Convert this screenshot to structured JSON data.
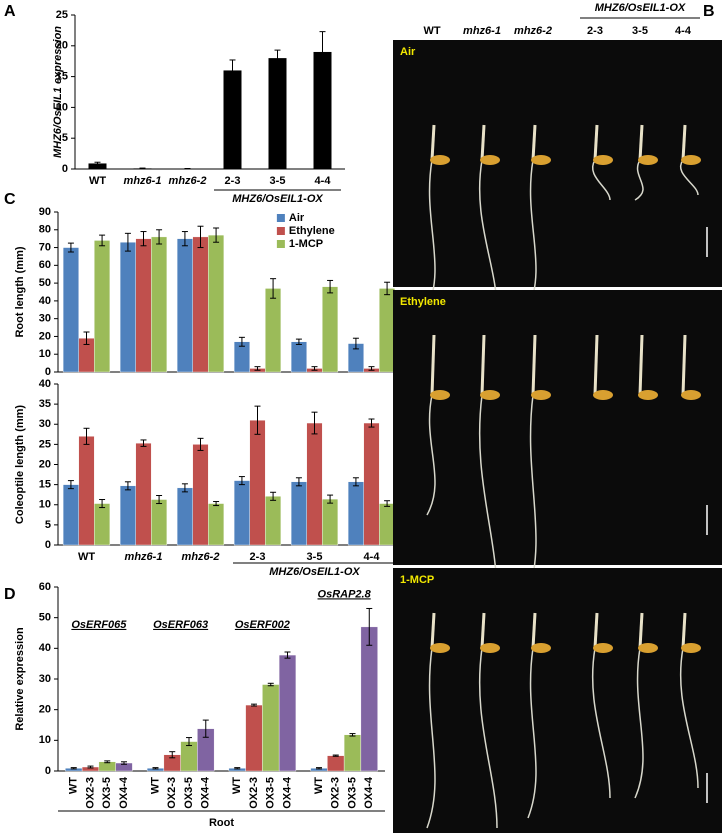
{
  "panel_labels": [
    "A",
    "B",
    "C",
    "D"
  ],
  "chart_data": [
    {
      "type": "bar",
      "y_label": "MHZ6/OsEIL1 expression",
      "categories": [
        "WT",
        "mhz6-1",
        "mhz6-2",
        "2-3",
        "3-5",
        "4-4"
      ],
      "group_label": "MHZ6/OsEIL1-OX",
      "values": [
        0.9,
        0.1,
        0.05,
        16,
        18,
        19
      ],
      "errors": [
        0.2,
        0.05,
        0.03,
        1.7,
        1.3,
        3.3
      ],
      "color": "#000000",
      "ylim": [
        0,
        25
      ],
      "yticks": [
        0,
        5,
        10,
        15,
        20,
        25
      ]
    },
    {
      "type": "bar",
      "y_label": "Root length (mm)",
      "legend": "upper right",
      "series": [
        {
          "name": "Air",
          "color": "#4f81bd",
          "values": [
            70,
            73,
            75,
            17,
            17,
            16
          ],
          "errors": [
            2.5,
            5,
            4,
            2.5,
            1.5,
            3
          ]
        },
        {
          "name": "Ethylene",
          "color": "#c0504d",
          "values": [
            19,
            75,
            76,
            2,
            2,
            2
          ],
          "errors": [
            3.5,
            4,
            6,
            1,
            1,
            1
          ]
        },
        {
          "name": "1-MCP",
          "color": "#9bbb59",
          "values": [
            74,
            76,
            77,
            47,
            48,
            47
          ],
          "errors": [
            3,
            4,
            4,
            5.5,
            3.5,
            3.5
          ]
        }
      ],
      "ylim": [
        0,
        90
      ],
      "yticks": [
        0,
        10,
        20,
        30,
        40,
        50,
        60,
        70,
        80,
        90
      ]
    },
    {
      "type": "bar",
      "y_label": "Coleoptile length (mm)",
      "categories": [
        "WT",
        "mhz6-1",
        "mhz6-2",
        "2-3",
        "3-5",
        "4-4"
      ],
      "group_label": "MHZ6/OsEIL1-OX",
      "series": [
        {
          "color": "#4f81bd",
          "values": [
            15,
            14.7,
            14.2,
            16,
            15.7,
            15.7
          ],
          "errors": [
            1,
            1,
            1,
            1,
            1,
            1
          ]
        },
        {
          "color": "#c0504d",
          "values": [
            27,
            25.3,
            25,
            31,
            30.3,
            30.3
          ],
          "errors": [
            2,
            0.8,
            1.5,
            3.5,
            2.7,
            1
          ]
        },
        {
          "color": "#9bbb59",
          "values": [
            10.3,
            11.3,
            10.3,
            12.1,
            11.4,
            10.3
          ],
          "errors": [
            1,
            1,
            0.5,
            1,
            1,
            0.7
          ]
        }
      ],
      "ylim": [
        0,
        40
      ],
      "yticks": [
        0,
        5,
        10,
        15,
        20,
        25,
        30,
        35,
        40
      ]
    },
    {
      "type": "bar",
      "y_label": "Relative expression",
      "x_label": "Root",
      "categories": [
        "OsERF065",
        "OsERF063",
        "OsERF002",
        "OsRAP2.8"
      ],
      "series": [
        {
          "name": "WT",
          "color": "#4f81bd",
          "values": [
            0.9,
            0.9,
            0.9,
            0.9
          ],
          "errors": [
            0.2,
            0.2,
            0.2,
            0.2
          ]
        },
        {
          "name": "OX2-3",
          "color": "#c0504d",
          "values": [
            1.3,
            5.3,
            21.5,
            5
          ],
          "errors": [
            0.3,
            1,
            0.3,
            0.2
          ]
        },
        {
          "name": "OX3-5",
          "color": "#9bbb59",
          "values": [
            3,
            9.6,
            28.2,
            11.8
          ],
          "errors": [
            0.3,
            1.3,
            0.4,
            0.4
          ]
        },
        {
          "name": "OX4-4",
          "color": "#8064a2",
          "values": [
            2.6,
            13.8,
            37.8,
            47
          ],
          "errors": [
            0.4,
            2.8,
            1,
            6
          ]
        }
      ],
      "ylim": [
        0,
        60
      ],
      "yticks": [
        0,
        10,
        20,
        30,
        40,
        50,
        60
      ]
    }
  ],
  "photo_panel": {
    "header": [
      "WT",
      "mhz6-1",
      "mhz6-2",
      "2-3",
      "3-5",
      "4-4"
    ],
    "group_label": "MHZ6/OsEIL1-OX",
    "conditions": [
      "Air",
      "Ethylene",
      "1-MCP"
    ]
  }
}
